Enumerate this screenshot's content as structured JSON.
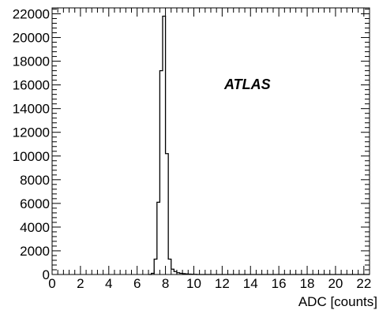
{
  "chart_data": {
    "type": "histogram",
    "xlabel": "ADC  [counts]",
    "ylabel": "",
    "annotation": "ATLAS",
    "xlim": [
      0,
      22.4
    ],
    "ylim": [
      0,
      22500
    ],
    "x_ticks": [
      0,
      2,
      4,
      6,
      8,
      10,
      12,
      14,
      16,
      18,
      20,
      22
    ],
    "y_ticks": [
      0,
      2000,
      4000,
      6000,
      8000,
      10000,
      12000,
      14000,
      16000,
      18000,
      20000,
      22000
    ],
    "bin_width": 0.2,
    "bins": [
      {
        "x": 6.8,
        "y": 0
      },
      {
        "x": 7.0,
        "y": 100
      },
      {
        "x": 7.2,
        "y": 1300
      },
      {
        "x": 7.4,
        "y": 6100
      },
      {
        "x": 7.6,
        "y": 17200
      },
      {
        "x": 7.8,
        "y": 21800
      },
      {
        "x": 8.0,
        "y": 10200
      },
      {
        "x": 8.2,
        "y": 1300
      },
      {
        "x": 8.4,
        "y": 450
      },
      {
        "x": 8.6,
        "y": 250
      },
      {
        "x": 8.8,
        "y": 150
      },
      {
        "x": 9.0,
        "y": 100
      },
      {
        "x": 9.2,
        "y": 70
      },
      {
        "x": 9.4,
        "y": 50
      },
      {
        "x": 9.6,
        "y": 35
      },
      {
        "x": 9.8,
        "y": 25
      },
      {
        "x": 10.0,
        "y": 15
      },
      {
        "x": 10.2,
        "y": 0
      }
    ]
  }
}
